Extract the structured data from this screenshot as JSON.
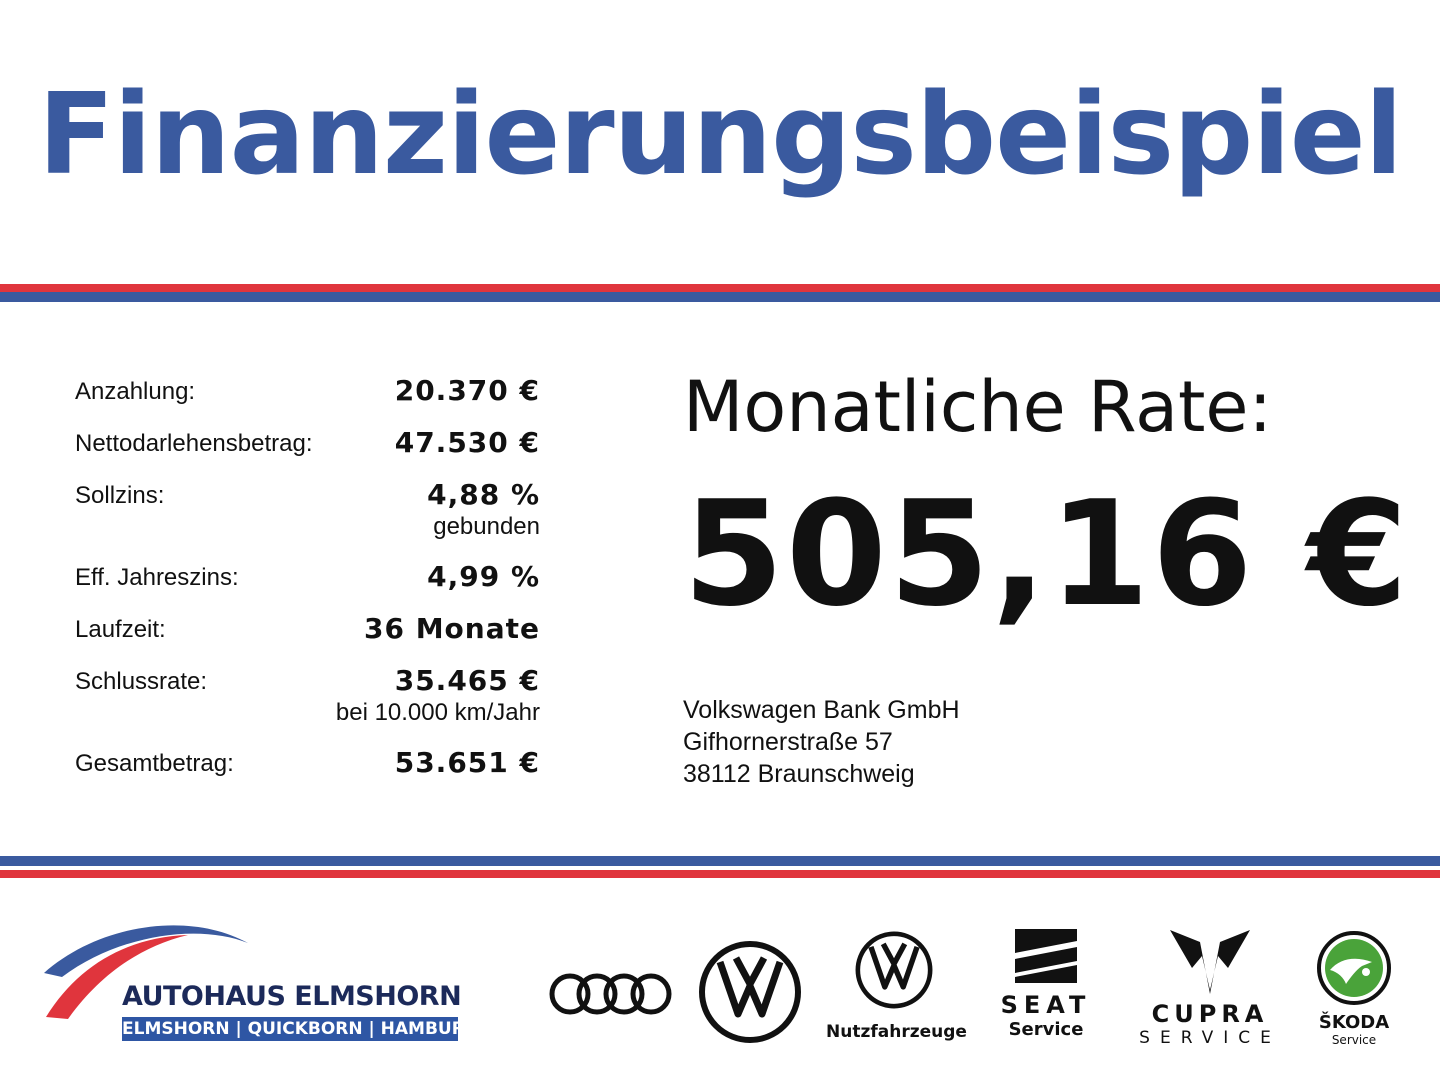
{
  "header": {
    "title": "Finanzierungsbeispiel"
  },
  "colors": {
    "brand_blue": "#3a5a9f",
    "brand_red": "#e0353d"
  },
  "details": [
    {
      "label": "Anzahlung:",
      "value": "20.370 €",
      "sub": ""
    },
    {
      "label": "Nettodarlehensbetrag:",
      "value": "47.530 €",
      "sub": ""
    },
    {
      "label": "Sollzins:",
      "value": "4,88 %",
      "sub": "gebunden"
    },
    {
      "label": "Eff. Jahreszins:",
      "value": "4,99 %",
      "sub": ""
    },
    {
      "label": "Laufzeit:",
      "value": "36 Monate",
      "sub": ""
    },
    {
      "label": "Schlussrate:",
      "value": "35.465 €",
      "sub": "bei 10.000 km/Jahr"
    },
    {
      "label": "Gesamtbetrag:",
      "value": "53.651 €",
      "sub": ""
    }
  ],
  "rate": {
    "label": "Monatliche Rate:",
    "value": "505,16 €"
  },
  "bank": {
    "name": "Volkswagen Bank GmbH",
    "street": "Gifhornerstraße 57",
    "city": "38112 Braunschweig"
  },
  "dealer": {
    "name": "AUTOHAUS ELMSHORN",
    "locations": "ELMSHORN | QUICKBORN | HAMBURG"
  },
  "brands": {
    "audi": "audi-logo",
    "vw": "volkswagen-logo",
    "vw_nfz_label": "Nutzfahrzeuge",
    "seat_word": "SEAT",
    "seat_label": "Service",
    "cupra_word": "CUPRA",
    "cupra_label": "SERVICE",
    "skoda_word": "ŠKODA",
    "skoda_label": "Service"
  }
}
